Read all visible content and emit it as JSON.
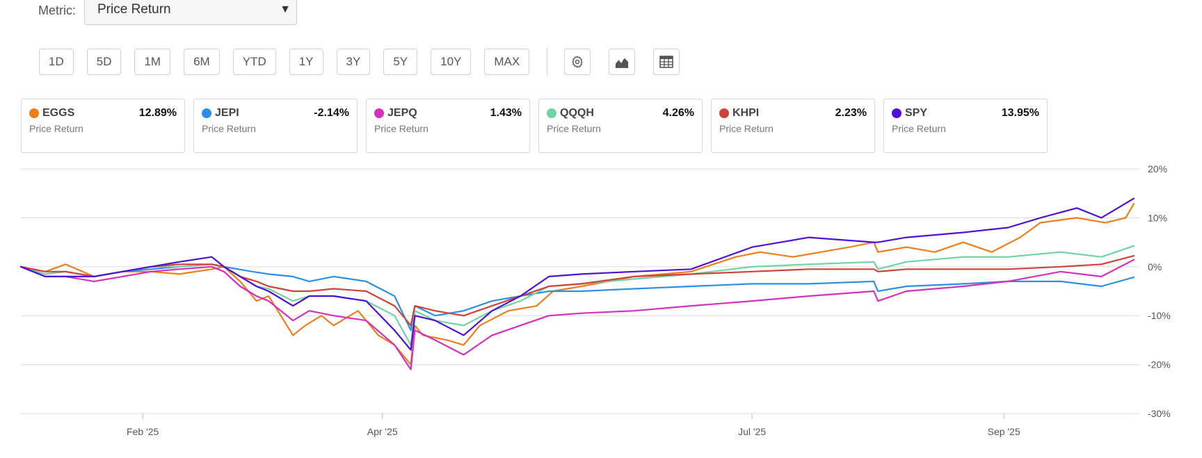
{
  "metric": {
    "label": "Metric:",
    "value": "Price Return"
  },
  "ranges": [
    "1D",
    "5D",
    "1M",
    "6M",
    "YTD",
    "1Y",
    "3Y",
    "5Y",
    "10Y",
    "MAX"
  ],
  "icons": [
    "gear-icon",
    "chart-type-icon",
    "table-icon"
  ],
  "chart_data": {
    "type": "line",
    "title": "",
    "xlabel": "",
    "ylabel": "",
    "x_range": [
      "2025-01-02",
      "2025-10-03"
    ],
    "x_ticks": [
      {
        "date": "2025-02-01",
        "label": "Feb '25"
      },
      {
        "date": "2025-04-01",
        "label": "Apr '25"
      },
      {
        "date": "2025-07-01",
        "label": "Jul '25"
      },
      {
        "date": "2025-09-01",
        "label": "Sep '25"
      }
    ],
    "ylim": [
      -30,
      20
    ],
    "y_ticks": [
      {
        "value": 20,
        "label": "20%"
      },
      {
        "value": 10,
        "label": "10%"
      },
      {
        "value": 0,
        "label": "0%"
      },
      {
        "value": -10,
        "label": "-10%"
      },
      {
        "value": -20,
        "label": "-20%"
      },
      {
        "value": -30,
        "label": "-30%"
      }
    ],
    "grid": true,
    "legend_position": "top",
    "series": [
      {
        "name": "EGGS",
        "color": "#ef7d1a",
        "value_label": "12.89%",
        "sub": "Price Return",
        "points": [
          [
            "2025-01-02",
            0
          ],
          [
            "2025-01-08",
            -1
          ],
          [
            "2025-01-13",
            0.5
          ],
          [
            "2025-01-20",
            -2
          ],
          [
            "2025-01-27",
            -1
          ],
          [
            "2025-02-03",
            -1
          ],
          [
            "2025-02-10",
            -1.5
          ],
          [
            "2025-02-18",
            -0.5
          ],
          [
            "2025-02-21",
            0
          ],
          [
            "2025-02-25",
            -3
          ],
          [
            "2025-03-01",
            -7
          ],
          [
            "2025-03-04",
            -6
          ],
          [
            "2025-03-10",
            -14
          ],
          [
            "2025-03-13",
            -12
          ],
          [
            "2025-03-17",
            -10
          ],
          [
            "2025-03-20",
            -12
          ],
          [
            "2025-03-26",
            -9
          ],
          [
            "2025-03-31",
            -14
          ],
          [
            "2025-04-04",
            -16
          ],
          [
            "2025-04-08",
            -20
          ],
          [
            "2025-04-09",
            -12
          ],
          [
            "2025-04-11",
            -14
          ],
          [
            "2025-04-17",
            -15
          ],
          [
            "2025-04-21",
            -16
          ],
          [
            "2025-04-25",
            -12
          ],
          [
            "2025-05-02",
            -9
          ],
          [
            "2025-05-09",
            -8
          ],
          [
            "2025-05-13",
            -5
          ],
          [
            "2025-05-20",
            -4
          ],
          [
            "2025-06-02",
            -2
          ],
          [
            "2025-06-16",
            -1
          ],
          [
            "2025-06-27",
            2
          ],
          [
            "2025-07-03",
            3
          ],
          [
            "2025-07-11",
            2
          ],
          [
            "2025-07-18",
            3
          ],
          [
            "2025-07-25",
            4
          ],
          [
            "2025-07-31",
            5
          ],
          [
            "2025-08-01",
            3
          ],
          [
            "2025-08-08",
            4
          ],
          [
            "2025-08-15",
            3
          ],
          [
            "2025-08-22",
            5
          ],
          [
            "2025-08-29",
            3
          ],
          [
            "2025-09-05",
            6
          ],
          [
            "2025-09-10",
            9
          ],
          [
            "2025-09-19",
            10
          ],
          [
            "2025-09-26",
            9
          ],
          [
            "2025-10-01",
            10
          ],
          [
            "2025-10-03",
            12.89
          ]
        ]
      },
      {
        "name": "JEPI",
        "color": "#2b8fe8",
        "value_label": "-2.14%",
        "sub": "Price Return",
        "points": [
          [
            "2025-01-02",
            0
          ],
          [
            "2025-01-08",
            -1.5
          ],
          [
            "2025-01-13",
            -1
          ],
          [
            "2025-01-20",
            -2
          ],
          [
            "2025-01-27",
            -1
          ],
          [
            "2025-02-03",
            -0.5
          ],
          [
            "2025-02-10",
            0
          ],
          [
            "2025-02-18",
            0.5
          ],
          [
            "2025-02-21",
            0
          ],
          [
            "2025-02-28",
            -1
          ],
          [
            "2025-03-04",
            -1.5
          ],
          [
            "2025-03-10",
            -2
          ],
          [
            "2025-03-14",
            -3
          ],
          [
            "2025-03-20",
            -2
          ],
          [
            "2025-03-28",
            -3
          ],
          [
            "2025-04-04",
            -6
          ],
          [
            "2025-04-08",
            -13
          ],
          [
            "2025-04-09",
            -8
          ],
          [
            "2025-04-14",
            -10
          ],
          [
            "2025-04-21",
            -9
          ],
          [
            "2025-04-28",
            -7
          ],
          [
            "2025-05-05",
            -6
          ],
          [
            "2025-05-12",
            -5
          ],
          [
            "2025-05-20",
            -5
          ],
          [
            "2025-06-02",
            -4.5
          ],
          [
            "2025-06-16",
            -4
          ],
          [
            "2025-07-01",
            -3.5
          ],
          [
            "2025-07-15",
            -3.5
          ],
          [
            "2025-07-31",
            -3
          ],
          [
            "2025-08-01",
            -5
          ],
          [
            "2025-08-08",
            -4
          ],
          [
            "2025-08-22",
            -3.5
          ],
          [
            "2025-09-02",
            -3
          ],
          [
            "2025-09-15",
            -3
          ],
          [
            "2025-09-25",
            -4
          ],
          [
            "2025-10-03",
            -2.14
          ]
        ]
      },
      {
        "name": "JEPQ",
        "color": "#d52fbe",
        "value_label": "1.43%",
        "sub": "Price Return",
        "points": [
          [
            "2025-01-02",
            0
          ],
          [
            "2025-01-08",
            -2
          ],
          [
            "2025-01-13",
            -2
          ],
          [
            "2025-01-20",
            -3
          ],
          [
            "2025-01-27",
            -2
          ],
          [
            "2025-02-03",
            -1
          ],
          [
            "2025-02-10",
            -0.5
          ],
          [
            "2025-02-18",
            0
          ],
          [
            "2025-02-21",
            -1
          ],
          [
            "2025-02-25",
            -4
          ],
          [
            "2025-03-01",
            -6
          ],
          [
            "2025-03-04",
            -7
          ],
          [
            "2025-03-10",
            -11
          ],
          [
            "2025-03-14",
            -9
          ],
          [
            "2025-03-20",
            -10
          ],
          [
            "2025-03-28",
            -11
          ],
          [
            "2025-04-04",
            -16
          ],
          [
            "2025-04-08",
            -21
          ],
          [
            "2025-04-09",
            -13
          ],
          [
            "2025-04-14",
            -15
          ],
          [
            "2025-04-21",
            -18
          ],
          [
            "2025-04-28",
            -14
          ],
          [
            "2025-05-05",
            -12
          ],
          [
            "2025-05-12",
            -10
          ],
          [
            "2025-05-20",
            -9.5
          ],
          [
            "2025-06-02",
            -9
          ],
          [
            "2025-06-16",
            -8
          ],
          [
            "2025-07-01",
            -7
          ],
          [
            "2025-07-15",
            -6
          ],
          [
            "2025-07-31",
            -5
          ],
          [
            "2025-08-01",
            -7
          ],
          [
            "2025-08-08",
            -5
          ],
          [
            "2025-08-22",
            -4
          ],
          [
            "2025-09-02",
            -3
          ],
          [
            "2025-09-15",
            -1
          ],
          [
            "2025-09-25",
            -2
          ],
          [
            "2025-10-03",
            1.43
          ]
        ]
      },
      {
        "name": "QQQH",
        "color": "#6fd3a2",
        "value_label": "4.26%",
        "sub": "Price Return",
        "points": [
          [
            "2025-01-02",
            0
          ],
          [
            "2025-01-08",
            -1.5
          ],
          [
            "2025-01-13",
            -1
          ],
          [
            "2025-01-20",
            -2
          ],
          [
            "2025-01-27",
            -1
          ],
          [
            "2025-02-03",
            0
          ],
          [
            "2025-02-10",
            0
          ],
          [
            "2025-02-18",
            0.5
          ],
          [
            "2025-02-21",
            0
          ],
          [
            "2025-02-25",
            -2
          ],
          [
            "2025-03-01",
            -4
          ],
          [
            "2025-03-04",
            -4.5
          ],
          [
            "2025-03-10",
            -7
          ],
          [
            "2025-03-14",
            -6
          ],
          [
            "2025-03-20",
            -6
          ],
          [
            "2025-03-28",
            -7
          ],
          [
            "2025-04-04",
            -10
          ],
          [
            "2025-04-08",
            -16
          ],
          [
            "2025-04-09",
            -9
          ],
          [
            "2025-04-14",
            -11
          ],
          [
            "2025-04-21",
            -12
          ],
          [
            "2025-04-28",
            -9
          ],
          [
            "2025-05-05",
            -7
          ],
          [
            "2025-05-12",
            -4
          ],
          [
            "2025-05-20",
            -3.5
          ],
          [
            "2025-06-02",
            -2.5
          ],
          [
            "2025-06-16",
            -1.5
          ],
          [
            "2025-07-01",
            0
          ],
          [
            "2025-07-15",
            0.5
          ],
          [
            "2025-07-31",
            1
          ],
          [
            "2025-08-01",
            -0.5
          ],
          [
            "2025-08-08",
            1
          ],
          [
            "2025-08-22",
            2
          ],
          [
            "2025-09-02",
            2
          ],
          [
            "2025-09-15",
            3
          ],
          [
            "2025-09-25",
            2
          ],
          [
            "2025-10-03",
            4.26
          ]
        ]
      },
      {
        "name": "KHPI",
        "color": "#cf4238",
        "value_label": "2.23%",
        "sub": "Price Return",
        "points": [
          [
            "2025-01-02",
            0
          ],
          [
            "2025-01-08",
            -1
          ],
          [
            "2025-01-13",
            -1
          ],
          [
            "2025-01-20",
            -2
          ],
          [
            "2025-01-27",
            -1
          ],
          [
            "2025-02-03",
            0
          ],
          [
            "2025-02-10",
            0.5
          ],
          [
            "2025-02-18",
            0.5
          ],
          [
            "2025-02-21",
            0
          ],
          [
            "2025-02-25",
            -2
          ],
          [
            "2025-03-01",
            -3
          ],
          [
            "2025-03-04",
            -4
          ],
          [
            "2025-03-10",
            -5
          ],
          [
            "2025-03-14",
            -5
          ],
          [
            "2025-03-20",
            -4.5
          ],
          [
            "2025-03-28",
            -5
          ],
          [
            "2025-04-04",
            -8
          ],
          [
            "2025-04-08",
            -12
          ],
          [
            "2025-04-09",
            -8
          ],
          [
            "2025-04-14",
            -9
          ],
          [
            "2025-04-21",
            -10
          ],
          [
            "2025-04-28",
            -8
          ],
          [
            "2025-05-05",
            -6
          ],
          [
            "2025-05-12",
            -4
          ],
          [
            "2025-05-20",
            -3.5
          ],
          [
            "2025-06-02",
            -2
          ],
          [
            "2025-06-16",
            -1.5
          ],
          [
            "2025-07-01",
            -1
          ],
          [
            "2025-07-15",
            -0.5
          ],
          [
            "2025-07-31",
            -0.5
          ],
          [
            "2025-08-01",
            -1
          ],
          [
            "2025-08-08",
            -0.5
          ],
          [
            "2025-08-22",
            -0.5
          ],
          [
            "2025-09-02",
            -0.5
          ],
          [
            "2025-09-15",
            0
          ],
          [
            "2025-09-25",
            0.5
          ],
          [
            "2025-10-03",
            2.23
          ]
        ]
      },
      {
        "name": "SPY",
        "color": "#4d10d6",
        "value_label": "13.95%",
        "sub": "Price Return",
        "points": [
          [
            "2025-01-02",
            0
          ],
          [
            "2025-01-08",
            -2
          ],
          [
            "2025-01-13",
            -2
          ],
          [
            "2025-01-20",
            -2
          ],
          [
            "2025-01-27",
            -1
          ],
          [
            "2025-02-03",
            0
          ],
          [
            "2025-02-10",
            1
          ],
          [
            "2025-02-18",
            2
          ],
          [
            "2025-02-21",
            0
          ],
          [
            "2025-02-25",
            -2
          ],
          [
            "2025-03-01",
            -4
          ],
          [
            "2025-03-04",
            -5
          ],
          [
            "2025-03-10",
            -8
          ],
          [
            "2025-03-14",
            -6
          ],
          [
            "2025-03-20",
            -6
          ],
          [
            "2025-03-28",
            -7
          ],
          [
            "2025-04-04",
            -13
          ],
          [
            "2025-04-08",
            -17
          ],
          [
            "2025-04-09",
            -10
          ],
          [
            "2025-04-14",
            -11
          ],
          [
            "2025-04-21",
            -14
          ],
          [
            "2025-04-28",
            -9
          ],
          [
            "2025-05-05",
            -6
          ],
          [
            "2025-05-12",
            -2
          ],
          [
            "2025-05-20",
            -1.5
          ],
          [
            "2025-06-02",
            -1
          ],
          [
            "2025-06-16",
            -0.5
          ],
          [
            "2025-07-01",
            4
          ],
          [
            "2025-07-15",
            6
          ],
          [
            "2025-07-31",
            5
          ],
          [
            "2025-08-01",
            5
          ],
          [
            "2025-08-08",
            6
          ],
          [
            "2025-08-22",
            7
          ],
          [
            "2025-09-02",
            8
          ],
          [
            "2025-09-10",
            10
          ],
          [
            "2025-09-19",
            12
          ],
          [
            "2025-09-25",
            10
          ],
          [
            "2025-10-03",
            13.95
          ]
        ]
      }
    ]
  }
}
